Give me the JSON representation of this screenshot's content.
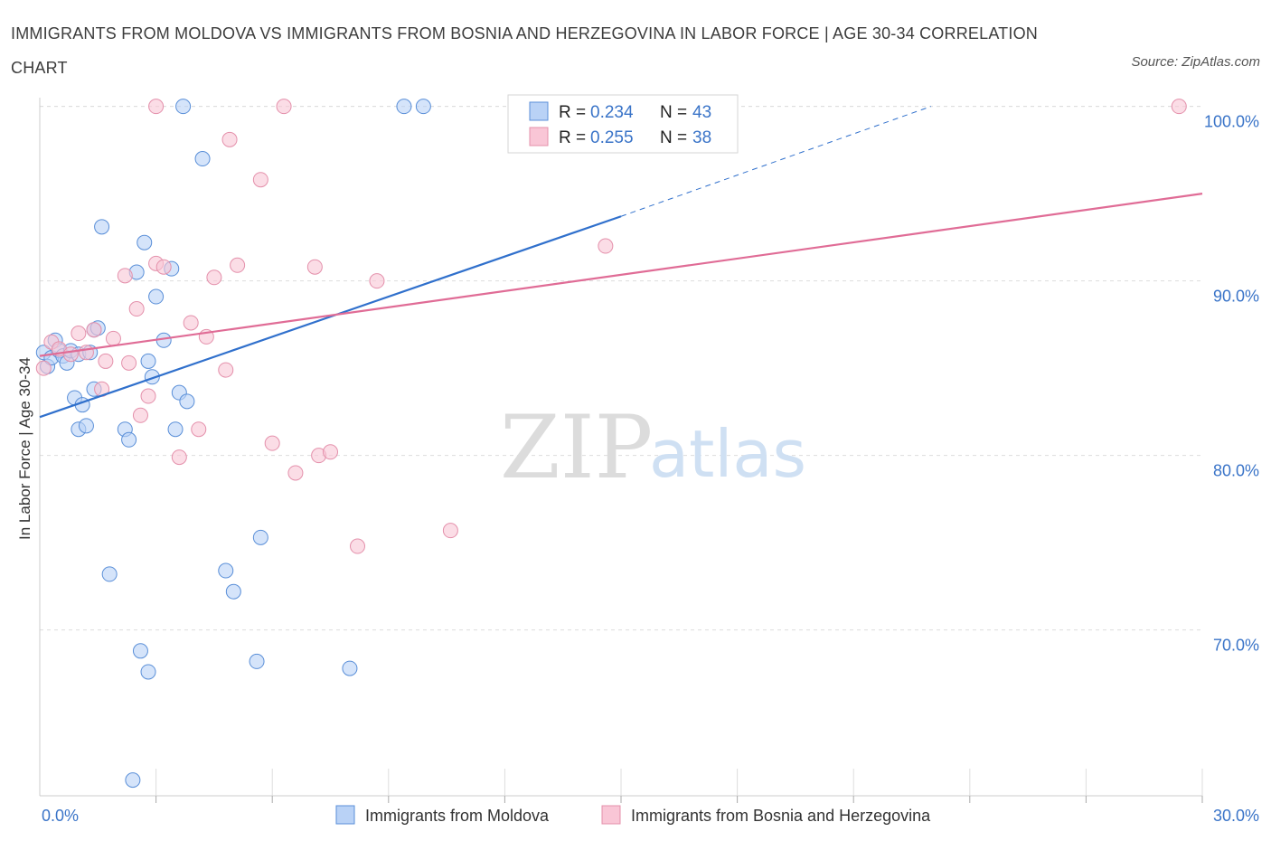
{
  "title": "IMMIGRANTS FROM MOLDOVA VS IMMIGRANTS FROM BOSNIA AND HERZEGOVINA IN LABOR FORCE | AGE 30-34 CORRELATION CHART",
  "source": "Source: ZipAtlas.com",
  "watermark": {
    "zip": "ZIP",
    "atlas": "atlas"
  },
  "colors": {
    "moldova_fill": "#b9d2f6",
    "moldova_stroke": "#5a8fd8",
    "moldova_line": "#3070cc",
    "bosnia_fill": "#f9c6d6",
    "bosnia_stroke": "#e490ab",
    "bosnia_line": "#e06c96",
    "axis_text": "#3a74c8",
    "grid": "#dddddd"
  },
  "legend": {
    "r_label": "R =",
    "n_label": "N =",
    "rows": [
      {
        "r": "0.234",
        "n": "43"
      },
      {
        "r": "0.255",
        "n": "38"
      }
    ]
  },
  "chart_data": {
    "type": "scatter",
    "title": "IMMIGRANTS FROM MOLDOVA VS IMMIGRANTS FROM BOSNIA AND HERZEGOVINA IN LABOR FORCE | AGE 30-34 CORRELATION CHART",
    "xlabel": "",
    "ylabel": "In Labor Force | Age 30-34",
    "xlim": [
      0,
      30
    ],
    "ylim": [
      60.5,
      100.5
    ],
    "x_tick_labels": [
      "0.0%",
      "30.0%"
    ],
    "y_ticks": [
      70,
      80,
      90,
      100
    ],
    "y_tick_labels": [
      "70.0%",
      "80.0%",
      "90.0%",
      "100.0%"
    ],
    "grid": true,
    "legend_position": "top-center",
    "series": [
      {
        "name": "Immigrants from Moldova",
        "trend": {
          "x": [
            0,
            15
          ],
          "y": [
            82.2,
            93.7
          ],
          "dashed_to": [
            23,
            100
          ]
        },
        "points": [
          [
            0.1,
            85.9
          ],
          [
            0.2,
            85.1
          ],
          [
            0.3,
            85.6
          ],
          [
            0.4,
            86.6
          ],
          [
            0.5,
            86.0
          ],
          [
            0.6,
            85.7
          ],
          [
            0.7,
            85.3
          ],
          [
            0.8,
            86.0
          ],
          [
            0.9,
            83.3
          ],
          [
            1.0,
            81.5
          ],
          [
            1.1,
            82.9
          ],
          [
            1.2,
            81.7
          ],
          [
            1.0,
            85.8
          ],
          [
            1.4,
            87.2
          ],
          [
            1.5,
            87.3
          ],
          [
            1.6,
            93.1
          ],
          [
            1.4,
            83.8
          ],
          [
            1.3,
            85.9
          ],
          [
            1.8,
            73.2
          ],
          [
            2.2,
            81.5
          ],
          [
            2.5,
            90.5
          ],
          [
            2.7,
            92.2
          ],
          [
            2.8,
            85.4
          ],
          [
            2.9,
            84.5
          ],
          [
            3.0,
            89.1
          ],
          [
            3.2,
            86.6
          ],
          [
            3.4,
            90.7
          ],
          [
            3.6,
            83.6
          ],
          [
            3.8,
            83.1
          ],
          [
            2.3,
            80.9
          ],
          [
            2.6,
            68.8
          ],
          [
            2.8,
            67.6
          ],
          [
            3.5,
            81.5
          ],
          [
            4.2,
            97.0
          ],
          [
            3.7,
            100.0
          ],
          [
            4.8,
            73.4
          ],
          [
            5.0,
            72.2
          ],
          [
            5.6,
            68.2
          ],
          [
            5.7,
            75.3
          ],
          [
            8.0,
            67.8
          ],
          [
            2.4,
            61.4
          ],
          [
            9.4,
            100.0
          ],
          [
            9.9,
            100.0
          ]
        ]
      },
      {
        "name": "Immigrants from Bosnia and Herzegovina",
        "trend": {
          "x": [
            0,
            30
          ],
          "y": [
            85.7,
            95.0
          ]
        },
        "points": [
          [
            0.1,
            85.0
          ],
          [
            0.3,
            86.5
          ],
          [
            0.5,
            86.1
          ],
          [
            0.8,
            85.8
          ],
          [
            1.0,
            87.0
          ],
          [
            1.2,
            85.9
          ],
          [
            1.4,
            87.2
          ],
          [
            1.6,
            83.8
          ],
          [
            1.7,
            85.4
          ],
          [
            1.9,
            86.7
          ],
          [
            2.3,
            85.3
          ],
          [
            2.2,
            90.3
          ],
          [
            2.5,
            88.4
          ],
          [
            2.6,
            82.3
          ],
          [
            2.8,
            83.4
          ],
          [
            3.0,
            91.0
          ],
          [
            3.2,
            90.8
          ],
          [
            3.6,
            79.9
          ],
          [
            3.9,
            87.6
          ],
          [
            4.1,
            81.5
          ],
          [
            4.3,
            86.8
          ],
          [
            4.5,
            90.2
          ],
          [
            4.8,
            84.9
          ],
          [
            5.1,
            90.9
          ],
          [
            4.9,
            98.1
          ],
          [
            5.7,
            95.8
          ],
          [
            6.0,
            80.7
          ],
          [
            6.6,
            79.0
          ],
          [
            7.1,
            90.8
          ],
          [
            7.2,
            80.0
          ],
          [
            7.5,
            80.2
          ],
          [
            8.2,
            74.8
          ],
          [
            8.7,
            90.0
          ],
          [
            10.6,
            75.7
          ],
          [
            6.3,
            100.0
          ],
          [
            3.0,
            100.0
          ],
          [
            14.6,
            92.0
          ],
          [
            29.4,
            100.0
          ]
        ]
      }
    ]
  }
}
